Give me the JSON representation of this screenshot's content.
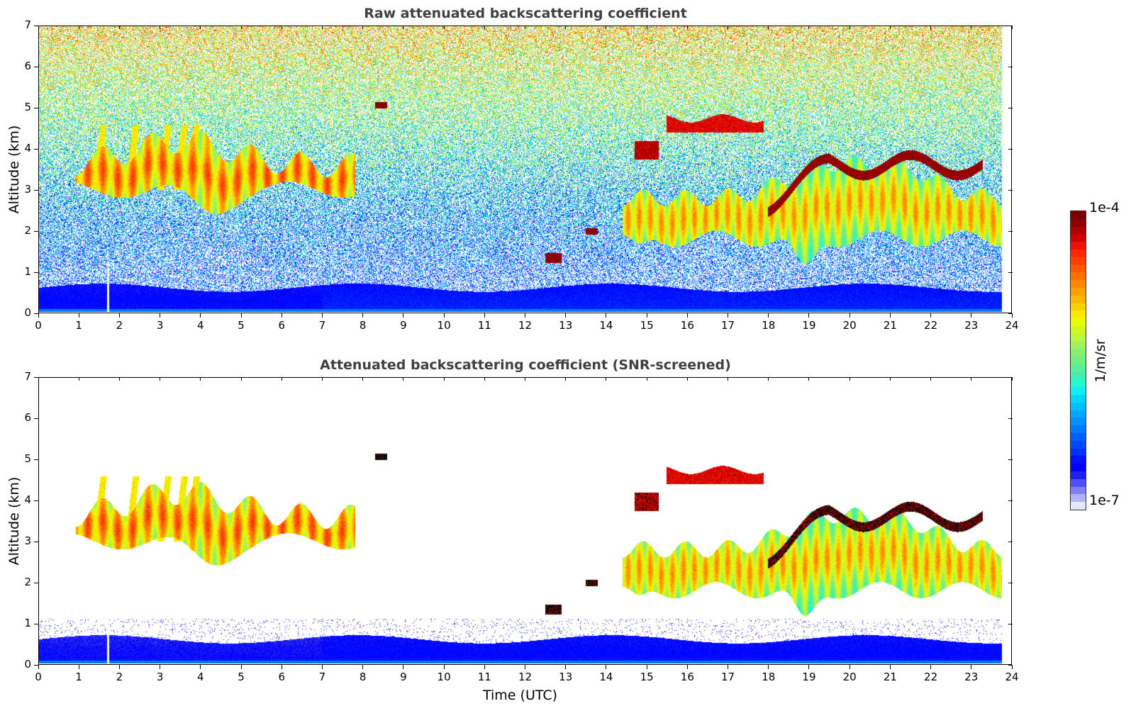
{
  "chart_data": [
    {
      "type": "heatmap",
      "title": "Raw attenuated backscattering coefficient",
      "xlabel": "",
      "ylabel": "Altitude (km)",
      "xlim": [
        0,
        24
      ],
      "ylim": [
        0,
        7
      ],
      "xticks": [
        "0",
        "1",
        "2",
        "3",
        "4",
        "5",
        "6",
        "7",
        "8",
        "9",
        "10",
        "11",
        "12",
        "13",
        "14",
        "15",
        "16",
        "17",
        "18",
        "19",
        "20",
        "21",
        "22",
        "23",
        "24"
      ],
      "yticks": [
        "0",
        "1",
        "2",
        "3",
        "4",
        "5",
        "6",
        "7"
      ],
      "data_end_hour": 23.8,
      "screened": false,
      "features": [
        {
          "kind": "cloud",
          "x_start": 0.9,
          "x_end": 7.8,
          "base_km": 2.5,
          "top_km": 4.5,
          "intensity": "moderate"
        },
        {
          "kind": "cloud",
          "x_start": 8.3,
          "x_end": 8.6,
          "base_km": 5.0,
          "top_km": 5.15,
          "intensity": "strong"
        },
        {
          "kind": "cloud",
          "x_start": 12.5,
          "x_end": 12.9,
          "base_km": 1.2,
          "top_km": 1.45,
          "intensity": "strong"
        },
        {
          "kind": "cloud",
          "x_start": 13.5,
          "x_end": 13.8,
          "base_km": 1.9,
          "top_km": 2.05,
          "intensity": "strong"
        },
        {
          "kind": "cloud",
          "x_start": 14.4,
          "x_end": 23.8,
          "base_km": 1.5,
          "top_km": 3.8,
          "intensity": "moderate"
        },
        {
          "kind": "cloud",
          "x_start": 15.5,
          "x_end": 17.9,
          "base_km": 4.4,
          "top_km": 4.75,
          "intensity": "strong"
        },
        {
          "kind": "cloud",
          "x_start": 18.0,
          "x_end": 23.3,
          "base_km": 2.6,
          "top_km": 3.85,
          "intensity": "strong"
        }
      ]
    },
    {
      "type": "heatmap",
      "title": "Attenuated backscattering coefficient (SNR-screened)",
      "xlabel": "Time (UTC)",
      "ylabel": "Altitude (km)",
      "xlim": [
        0,
        24
      ],
      "ylim": [
        0,
        7
      ],
      "xticks": [
        "0",
        "1",
        "2",
        "3",
        "4",
        "5",
        "6",
        "7",
        "8",
        "9",
        "10",
        "11",
        "12",
        "13",
        "14",
        "15",
        "16",
        "17",
        "18",
        "19",
        "20",
        "21",
        "22",
        "23",
        "24"
      ],
      "yticks": [
        "0",
        "1",
        "2",
        "3",
        "4",
        "5",
        "6",
        "7"
      ],
      "data_end_hour": 23.8,
      "screened": true
    }
  ],
  "colorbar": {
    "min_label": "1e-7",
    "max_label": "1e-4",
    "unit": "1/m/sr",
    "colors": [
      "#e6e6fa",
      "#b4b4f5",
      "#8080fa",
      "#5050fa",
      "#2020f0",
      "#0000ff",
      "#0010ff",
      "#0030ff",
      "#0048ff",
      "#0060ff",
      "#0078ff",
      "#0090ff",
      "#00a8ff",
      "#00c0ff",
      "#00d8ff",
      "#10f0f0",
      "#28f8d0",
      "#40f0b0",
      "#58f098",
      "#70f080",
      "#88f070",
      "#a0f060",
      "#b8f840",
      "#d0f820",
      "#e8ff00",
      "#ffe800",
      "#ffd000",
      "#ffb800",
      "#ffa000",
      "#ff8800",
      "#ff7000",
      "#ff5800",
      "#ff4000",
      "#ff2800",
      "#f01000",
      "#d00000",
      "#b00000",
      "#900000",
      "#780000"
    ]
  }
}
